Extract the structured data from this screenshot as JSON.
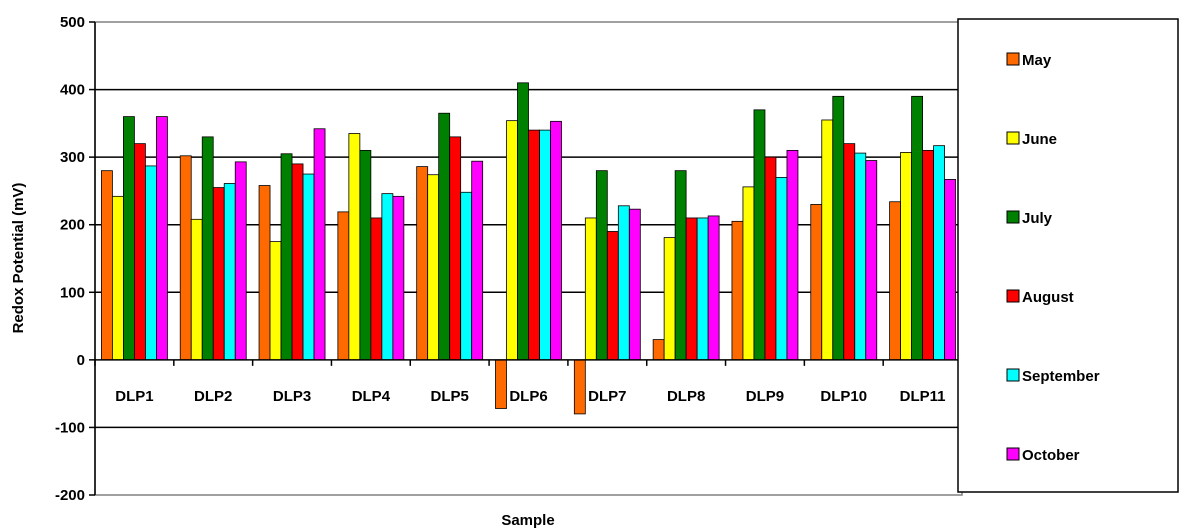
{
  "chart_data": {
    "type": "bar",
    "title": "",
    "xlabel": "Sample",
    "ylabel": "Redox Potential (mV)",
    "ylim": [
      -200,
      500
    ],
    "yticks": [
      -200,
      -100,
      0,
      100,
      200,
      300,
      400,
      500
    ],
    "grid": true,
    "legend_position": "right",
    "categories": [
      "DLP1",
      "DLP2",
      "DLP3",
      "DLP4",
      "DLP5",
      "DLP6",
      "DLP7",
      "DLP8",
      "DLP9",
      "DLP10",
      "DLP11"
    ],
    "series": [
      {
        "name": "May",
        "color": "#FF6A00",
        "values": [
          280,
          302,
          258,
          219,
          286,
          -72,
          -80,
          30,
          205,
          230,
          234
        ]
      },
      {
        "name": "June",
        "color": "#FFFF00",
        "values": [
          242,
          208,
          175,
          335,
          274,
          354,
          210,
          181,
          256,
          355,
          307
        ]
      },
      {
        "name": "July",
        "color": "#008000",
        "values": [
          360,
          330,
          305,
          310,
          365,
          410,
          280,
          280,
          370,
          390,
          390
        ]
      },
      {
        "name": "August",
        "color": "#FF0000",
        "values": [
          320,
          255,
          290,
          210,
          330,
          340,
          190,
          210,
          300,
          320,
          310
        ]
      },
      {
        "name": "September",
        "color": "#00FFFF",
        "values": [
          287,
          261,
          275,
          246,
          248,
          340,
          228,
          210,
          270,
          306,
          317
        ]
      },
      {
        "name": "October",
        "color": "#FF00FF",
        "values": [
          360,
          293,
          342,
          242,
          294,
          353,
          223,
          213,
          310,
          295,
          267
        ]
      }
    ]
  }
}
